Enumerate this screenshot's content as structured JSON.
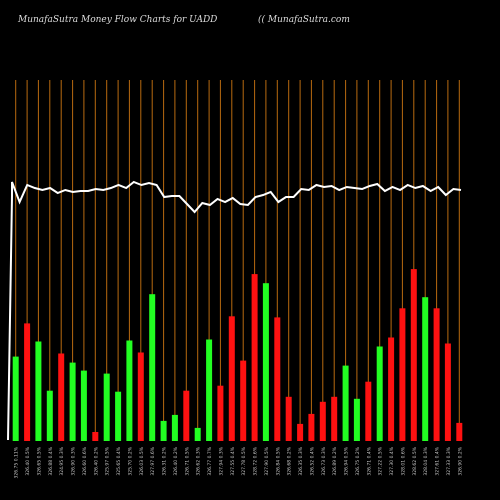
{
  "header": {
    "title": "MunafaSutra  Money Flow  Charts for UADD",
    "site": "(( MunafaSutra.com"
  },
  "colors": {
    "background": "#000000",
    "up": "#22ff22",
    "down": "#ff1111",
    "gridline": "#b86a10",
    "line": "#ffffff",
    "label": "#cccccc"
  },
  "chart_data": {
    "type": "bar",
    "title": "MunafaSutra  Money Flow  Charts for UADD",
    "grid": true,
    "bars": [
      {
        "value": 84,
        "color": "up",
        "label": "326.75 0.11%"
      },
      {
        "value": 117,
        "color": "down",
        "label": "326.40 0.5%"
      },
      {
        "value": 99,
        "color": "up",
        "label": "326.65 0.5%"
      },
      {
        "value": 50,
        "color": "up",
        "label": "326.88 0.4%"
      },
      {
        "value": 87,
        "color": "down",
        "label": "324.95 0.3%"
      },
      {
        "value": 78,
        "color": "up",
        "label": "326.90 0.3%"
      },
      {
        "value": 70,
        "color": "up",
        "label": "326.60 0.6%"
      },
      {
        "value": 9,
        "color": "down",
        "label": "326.40 0.2%"
      },
      {
        "value": 67,
        "color": "up",
        "label": "325.97 0.5%"
      },
      {
        "value": 49,
        "color": "up",
        "label": "325.65 0.4%"
      },
      {
        "value": 100,
        "color": "up",
        "label": "325.70 0.2%"
      },
      {
        "value": 88,
        "color": "down",
        "label": "326.03 0.5%"
      },
      {
        "value": 146,
        "color": "up",
        "label": "327.97 0.6%"
      },
      {
        "value": 20,
        "color": "up",
        "label": "326.31 0.2%"
      },
      {
        "value": 26,
        "color": "up",
        "label": "326.40 0.2%"
      },
      {
        "value": 50,
        "color": "down",
        "label": "326.71 0.5%"
      },
      {
        "value": 13,
        "color": "up",
        "label": "326.62 0.3%"
      },
      {
        "value": 101,
        "color": "up",
        "label": "326.77 0.7%"
      },
      {
        "value": 55,
        "color": "down",
        "label": "327.94 0.3%"
      },
      {
        "value": 124,
        "color": "down",
        "label": "327.55 0.4%"
      },
      {
        "value": 80,
        "color": "down",
        "label": "327.78 0.5%"
      },
      {
        "value": 166,
        "color": "down",
        "label": "328.72 0.6%"
      },
      {
        "value": 157,
        "color": "up",
        "label": "327.90 0.5%"
      },
      {
        "value": 123,
        "color": "down",
        "label": "326.84 0.5%"
      },
      {
        "value": 44,
        "color": "down",
        "label": "326.68 0.2%"
      },
      {
        "value": 17,
        "color": "down",
        "label": "326.35 0.3%"
      },
      {
        "value": 27,
        "color": "down",
        "label": "326.52 0.4%"
      },
      {
        "value": 39,
        "color": "down",
        "label": "326.73 0.3%"
      },
      {
        "value": 44,
        "color": "down",
        "label": "326.89 0.2%"
      },
      {
        "value": 75,
        "color": "up",
        "label": "326.94 0.5%"
      },
      {
        "value": 42,
        "color": "up",
        "label": "326.75 0.2%"
      },
      {
        "value": 59,
        "color": "down",
        "label": "326.71 0.4%"
      },
      {
        "value": 94,
        "color": "up",
        "label": "327.22 0.5%"
      },
      {
        "value": 103,
        "color": "down",
        "label": "327.30 0.4%"
      },
      {
        "value": 132,
        "color": "down",
        "label": "328.01 0.6%"
      },
      {
        "value": 171,
        "color": "down",
        "label": "328.62 0.5%"
      },
      {
        "value": 143,
        "color": "up",
        "label": "328.04 0.3%"
      },
      {
        "value": 132,
        "color": "down",
        "label": "327.61 0.4%"
      },
      {
        "value": 97,
        "color": "down",
        "label": "327.33 0.3%"
      },
      {
        "value": 18,
        "color": "down",
        "label": "326.90 0.2%"
      }
    ],
    "line": [
      192,
      212,
      195,
      198,
      200,
      198,
      203,
      200,
      202,
      201,
      201,
      199,
      200,
      198,
      195,
      198,
      192,
      195,
      193,
      195,
      207,
      206,
      206,
      214,
      222,
      213,
      215,
      209,
      212,
      208,
      214,
      215,
      207,
      205,
      202,
      212,
      207,
      207,
      199,
      200,
      195,
      197,
      196,
      200,
      197,
      198,
      199,
      196,
      194,
      201,
      197,
      200,
      195,
      198,
      196,
      201,
      197,
      205,
      199,
      200
    ],
    "line_start": 196
  }
}
